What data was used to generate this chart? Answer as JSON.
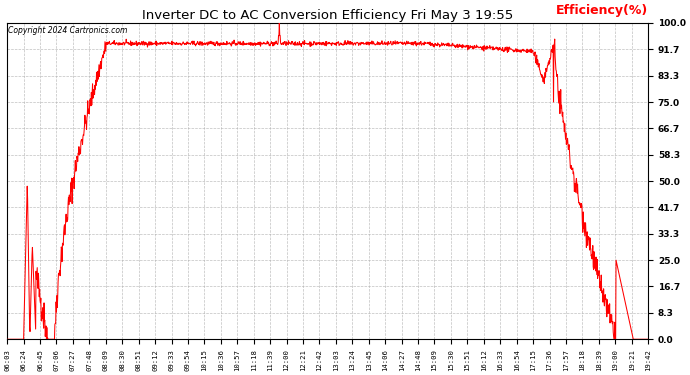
{
  "title": "Inverter DC to AC Conversion Efficiency Fri May 3 19:55",
  "ylabel": "Efficiency(%)",
  "copyright": "Copyright 2024 Cartronics.com",
  "line_color": "red",
  "bg_color": "white",
  "grid_color": "#b0b0b0",
  "ylim": [
    0.0,
    100.0
  ],
  "yticks": [
    0.0,
    8.3,
    16.7,
    25.0,
    33.3,
    41.7,
    50.0,
    58.3,
    66.7,
    75.0,
    83.3,
    91.7,
    100.0
  ],
  "xtick_labels": [
    "06:03",
    "06:24",
    "06:45",
    "07:06",
    "07:27",
    "07:48",
    "08:09",
    "08:30",
    "08:51",
    "09:12",
    "09:33",
    "09:54",
    "10:15",
    "10:36",
    "10:57",
    "11:18",
    "11:39",
    "12:00",
    "12:21",
    "12:42",
    "13:03",
    "13:24",
    "13:45",
    "14:06",
    "14:27",
    "14:48",
    "15:09",
    "15:30",
    "15:51",
    "16:12",
    "16:33",
    "16:54",
    "17:15",
    "17:36",
    "17:57",
    "18:18",
    "18:39",
    "19:00",
    "19:21",
    "19:42"
  ],
  "n_points": 1600,
  "figsize": [
    6.9,
    3.75
  ],
  "dpi": 100
}
